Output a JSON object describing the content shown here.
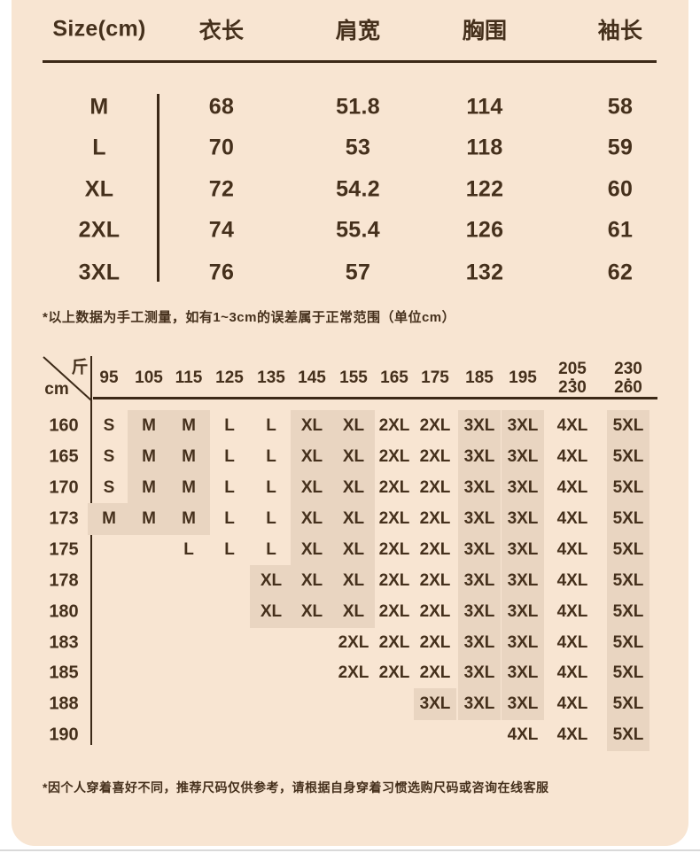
{
  "panel": {
    "bg_color": "#f8e5d2",
    "shade_color": "#e9d5c1",
    "text_color": "#45301c",
    "line_color": "#3c2917",
    "bottom_divider_color": "#d9d9d9"
  },
  "size_table": {
    "title": "Size(cm)",
    "columns": [
      "衣长",
      "肩宽",
      "胸围",
      "袖长"
    ],
    "rows": [
      {
        "size": "M",
        "values": [
          "68",
          "51.8",
          "114",
          "58"
        ]
      },
      {
        "size": "L",
        "values": [
          "70",
          "53",
          "118",
          "59"
        ]
      },
      {
        "size": "XL",
        "values": [
          "72",
          "54.2",
          "122",
          "60"
        ]
      },
      {
        "size": "2XL",
        "values": [
          "74",
          "55.4",
          "126",
          "61"
        ]
      },
      {
        "size": "3XL",
        "values": [
          "76",
          "57",
          "132",
          "62"
        ]
      }
    ],
    "note": "*以上数据为手工测量，如有1~3cm的误差属于正常范围（单位cm）"
  },
  "recommendation_table": {
    "corner_top_label": "斤",
    "corner_bottom_label": "cm",
    "weight_columns": [
      "95",
      "105",
      "115",
      "125",
      "135",
      "145",
      "155",
      "165",
      "175",
      "185",
      "195",
      "205-230",
      "230-260"
    ],
    "height_rows": [
      {
        "height": "160",
        "cells": [
          "S",
          "M",
          "M",
          "L",
          "L",
          "XL",
          "XL",
          "2XL",
          "2XL",
          "3XL",
          "3XL",
          "4XL",
          "5XL"
        ]
      },
      {
        "height": "165",
        "cells": [
          "S",
          "M",
          "M",
          "L",
          "L",
          "XL",
          "XL",
          "2XL",
          "2XL",
          "3XL",
          "3XL",
          "4XL",
          "5XL"
        ]
      },
      {
        "height": "170",
        "cells": [
          "S",
          "M",
          "M",
          "L",
          "L",
          "XL",
          "XL",
          "2XL",
          "2XL",
          "3XL",
          "3XL",
          "4XL",
          "5XL"
        ]
      },
      {
        "height": "173",
        "cells": [
          "M",
          "M",
          "M",
          "L",
          "L",
          "XL",
          "XL",
          "2XL",
          "2XL",
          "3XL",
          "3XL",
          "4XL",
          "5XL"
        ]
      },
      {
        "height": "175",
        "cells": [
          "",
          "",
          "L",
          "L",
          "L",
          "XL",
          "XL",
          "2XL",
          "2XL",
          "3XL",
          "3XL",
          "4XL",
          "5XL"
        ]
      },
      {
        "height": "178",
        "cells": [
          "",
          "",
          "",
          "",
          "XL",
          "XL",
          "XL",
          "2XL",
          "2XL",
          "3XL",
          "3XL",
          "4XL",
          "5XL"
        ]
      },
      {
        "height": "180",
        "cells": [
          "",
          "",
          "",
          "",
          "XL",
          "XL",
          "XL",
          "2XL",
          "2XL",
          "3XL",
          "3XL",
          "4XL",
          "5XL"
        ]
      },
      {
        "height": "183",
        "cells": [
          "",
          "",
          "",
          "",
          "",
          "",
          "2XL",
          "2XL",
          "2XL",
          "3XL",
          "3XL",
          "4XL",
          "5XL"
        ]
      },
      {
        "height": "185",
        "cells": [
          "",
          "",
          "",
          "",
          "",
          "",
          "2XL",
          "2XL",
          "2XL",
          "3XL",
          "3XL",
          "4XL",
          "5XL"
        ]
      },
      {
        "height": "188",
        "cells": [
          "",
          "",
          "",
          "",
          "",
          "",
          "",
          "",
          "3XL",
          "3XL",
          "3XL",
          "4XL",
          "5XL"
        ]
      },
      {
        "height": "190",
        "cells": [
          "",
          "",
          "",
          "",
          "",
          "",
          "",
          "",
          "",
          "",
          "4XL",
          "4XL",
          "5XL"
        ]
      }
    ],
    "highlighted_sizes": [
      "M",
      "XL",
      "3XL",
      "5XL"
    ],
    "note": "*因个人穿着喜好不同，推荐尺码仅供参考，请根据自身穿着习惯选购尺码或咨询在线客服"
  }
}
